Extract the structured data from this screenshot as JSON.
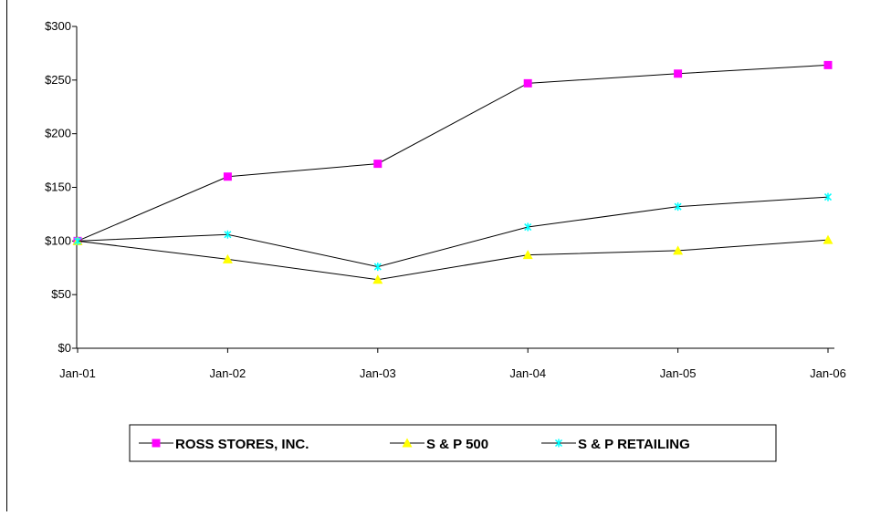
{
  "chart_data": {
    "type": "line",
    "title": "",
    "xlabel": "",
    "ylabel": "",
    "categories": [
      "Jan-01",
      "Jan-02",
      "Jan-03",
      "Jan-04",
      "Jan-05",
      "Jan-06"
    ],
    "ylim": [
      0,
      300
    ],
    "yticks": [
      0,
      50,
      100,
      150,
      200,
      250,
      300
    ],
    "ytick_labels": [
      "$0",
      "$50",
      "$100",
      "$150",
      "$200",
      "$250",
      "$300"
    ],
    "grid": false,
    "legend_position": "bottom",
    "series": [
      {
        "name": "ROSS STORES, INC.",
        "values": [
          100,
          160,
          172,
          247,
          256,
          264
        ],
        "color": "#ff00ff",
        "marker": "square"
      },
      {
        "name": "S & P 500",
        "values": [
          100,
          83,
          64,
          87,
          91,
          101
        ],
        "color": "#ffff00",
        "marker": "triangle"
      },
      {
        "name": "S & P RETAILING",
        "values": [
          100,
          106,
          76,
          113,
          132,
          141
        ],
        "color": "#00ffff",
        "marker": "star"
      }
    ]
  }
}
